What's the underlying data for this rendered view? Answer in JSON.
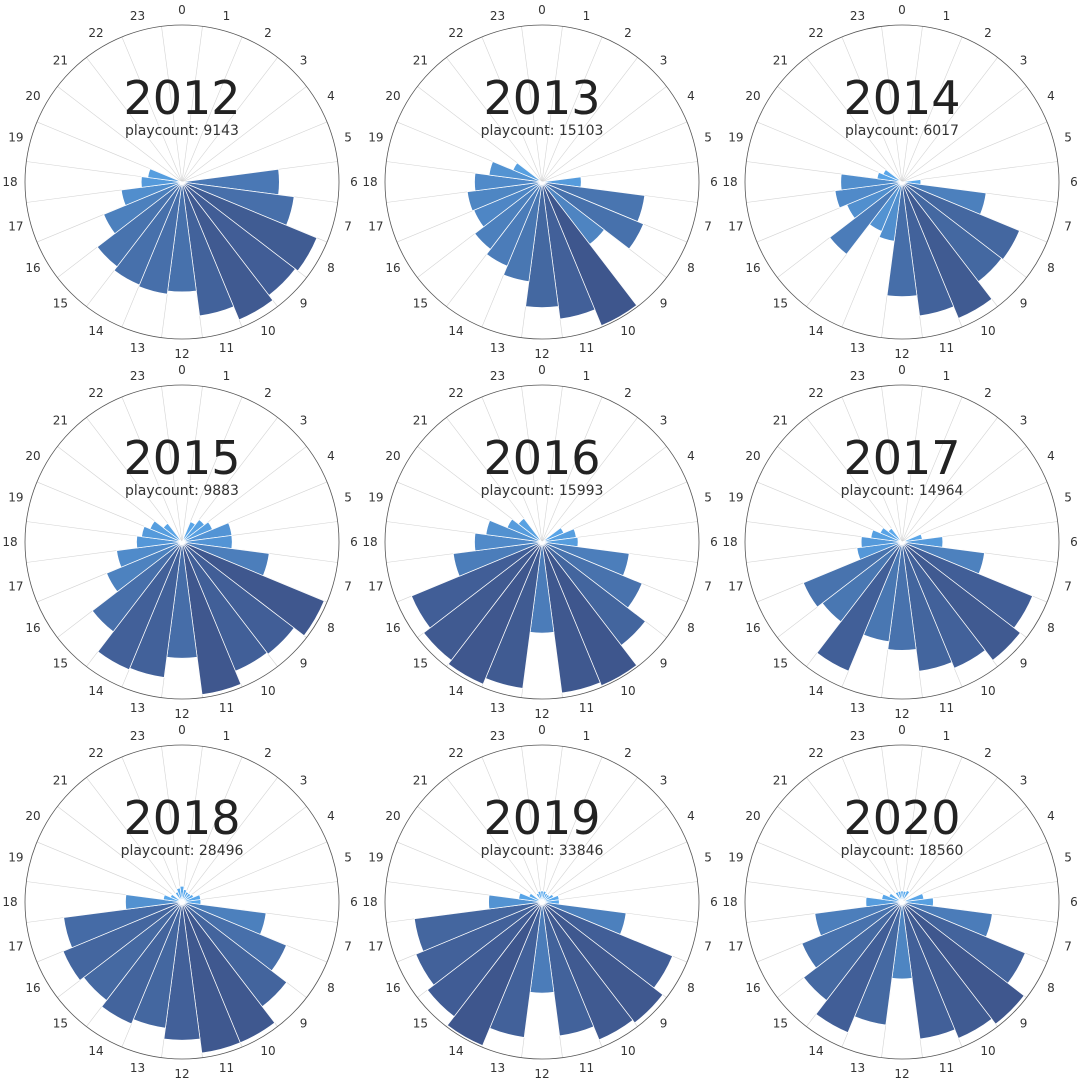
{
  "chart_data": [
    {
      "type": "bar",
      "subtype": "polar",
      "title": "2012",
      "subtitle_label": "playcount: ",
      "playcount": "9143",
      "categories": [
        "0",
        "1",
        "2",
        "3",
        "4",
        "5",
        "6",
        "7",
        "8",
        "9",
        "10",
        "11",
        "12",
        "13",
        "14",
        "15",
        "16",
        "17",
        "18",
        "19",
        "20",
        "21",
        "22",
        "23"
      ],
      "values": [
        0,
        0,
        0,
        0,
        0,
        0,
        0.62,
        0.72,
        0.93,
        0.91,
        0.95,
        0.86,
        0.7,
        0.72,
        0.71,
        0.68,
        0.54,
        0.39,
        0.26,
        0.22,
        0,
        0,
        0,
        0
      ]
    },
    {
      "type": "bar",
      "subtype": "polar",
      "title": "2013",
      "subtitle_label": "playcount: ",
      "playcount": "15103",
      "categories": [
        "0",
        "1",
        "2",
        "3",
        "4",
        "5",
        "6",
        "7",
        "8",
        "9",
        "10",
        "11",
        "12",
        "13",
        "14",
        "15",
        "16",
        "17",
        "18",
        "19",
        "20",
        "21",
        "22",
        "23"
      ],
      "values": [
        0,
        0,
        0,
        0,
        0,
        0,
        0.25,
        0.66,
        0.7,
        0.5,
        0.99,
        0.88,
        0.8,
        0.64,
        0.58,
        0.54,
        0.47,
        0.48,
        0.43,
        0.34,
        0.2,
        0,
        0,
        0
      ]
    },
    {
      "type": "bar",
      "subtype": "polar",
      "title": "2014",
      "subtitle_label": "playcount: ",
      "playcount": "6017",
      "categories": [
        "0",
        "1",
        "2",
        "3",
        "4",
        "5",
        "6",
        "7",
        "8",
        "9",
        "10",
        "11",
        "12",
        "13",
        "14",
        "15",
        "16",
        "17",
        "18",
        "19",
        "20",
        "21",
        "22",
        "23"
      ],
      "values": [
        0,
        0,
        0,
        0,
        0,
        0,
        0.12,
        0.54,
        0.81,
        0.8,
        0.94,
        0.86,
        0.73,
        0.38,
        0.34,
        0.58,
        0.38,
        0.43,
        0.39,
        0.16,
        0.13,
        0,
        0,
        0
      ]
    },
    {
      "type": "bar",
      "subtype": "polar",
      "title": "2015",
      "subtitle_label": "playcount: ",
      "playcount": "9883",
      "categories": [
        "0",
        "1",
        "2",
        "3",
        "4",
        "5",
        "6",
        "7",
        "8",
        "9",
        "10",
        "11",
        "12",
        "13",
        "14",
        "15",
        "16",
        "17",
        "18",
        "19",
        "20",
        "21",
        "22",
        "23"
      ],
      "values": [
        0,
        0,
        0.14,
        0.18,
        0.21,
        0.32,
        0.32,
        0.56,
        0.98,
        0.9,
        0.89,
        0.98,
        0.74,
        0.87,
        0.88,
        0.72,
        0.52,
        0.42,
        0.29,
        0.26,
        0.22,
        0.15,
        0,
        0
      ]
    },
    {
      "type": "bar",
      "subtype": "polar",
      "title": "2016",
      "subtitle_label": "playcount: ",
      "playcount": "15993",
      "categories": [
        "0",
        "1",
        "2",
        "3",
        "4",
        "5",
        "6",
        "7",
        "8",
        "9",
        "10",
        "11",
        "12",
        "13",
        "14",
        "15",
        "16",
        "17",
        "18",
        "19",
        "20",
        "21",
        "22",
        "23"
      ],
      "values": [
        0,
        0,
        0,
        0,
        0.15,
        0.22,
        0.23,
        0.56,
        0.69,
        0.83,
        0.99,
        0.97,
        0.58,
        0.94,
        0.98,
        0.95,
        0.9,
        0.57,
        0.43,
        0.36,
        0.24,
        0.19,
        0,
        0
      ]
    },
    {
      "type": "bar",
      "subtype": "polar",
      "title": "2017",
      "subtitle_label": "playcount: ",
      "playcount": "14964",
      "categories": [
        "0",
        "1",
        "2",
        "3",
        "4",
        "5",
        "6",
        "7",
        "8",
        "9",
        "10",
        "11",
        "12",
        "13",
        "14",
        "15",
        "16",
        "17",
        "18",
        "19",
        "20",
        "21",
        "22",
        "23"
      ],
      "values": [
        0,
        0,
        0,
        0,
        0,
        0.13,
        0.26,
        0.53,
        0.9,
        0.95,
        0.87,
        0.83,
        0.69,
        0.64,
        0.89,
        0.64,
        0.68,
        0.29,
        0.26,
        0.2,
        0.15,
        0.11,
        0,
        0
      ]
    },
    {
      "type": "bar",
      "subtype": "polar",
      "title": "2018",
      "subtitle_label": "playcount: ",
      "playcount": "28496",
      "categories": [
        "0",
        "1",
        "2",
        "3",
        "4",
        "5",
        "6",
        "7",
        "8",
        "9",
        "10",
        "11",
        "12",
        "13",
        "14",
        "15",
        "16",
        "17",
        "18",
        "19",
        "20",
        "21",
        "22",
        "23"
      ],
      "values": [
        0.1,
        0.08,
        0.07,
        0.07,
        0.08,
        0.12,
        0.12,
        0.54,
        0.72,
        0.84,
        0.97,
        0.97,
        0.88,
        0.81,
        0.84,
        0.79,
        0.82,
        0.76,
        0.36,
        0.12,
        0.08,
        0,
        0.07,
        0.09
      ]
    },
    {
      "type": "bar",
      "subtype": "polar",
      "title": "2019",
      "subtitle_label": "playcount: ",
      "playcount": "33846",
      "categories": [
        "0",
        "1",
        "2",
        "3",
        "4",
        "5",
        "6",
        "7",
        "8",
        "9",
        "10",
        "11",
        "12",
        "13",
        "14",
        "15",
        "16",
        "17",
        "18",
        "19",
        "20",
        "21",
        "22",
        "23"
      ],
      "values": [
        0.07,
        0.07,
        0.06,
        0.06,
        0.08,
        0.11,
        0.11,
        0.54,
        0.9,
        0.97,
        0.95,
        0.86,
        0.58,
        0.87,
        0.99,
        0.92,
        0.87,
        0.82,
        0.34,
        0.15,
        0.09,
        0,
        0.06,
        0.07
      ]
    },
    {
      "type": "bar",
      "subtype": "polar",
      "title": "2020",
      "subtitle_label": "playcount: ",
      "playcount": "18560",
      "categories": [
        "0",
        "1",
        "2",
        "3",
        "4",
        "5",
        "6",
        "7",
        "8",
        "9",
        "10",
        "11",
        "12",
        "13",
        "14",
        "15",
        "16",
        "17",
        "18",
        "19",
        "20",
        "21",
        "22",
        "23"
      ],
      "values": [
        0.07,
        0.07,
        0.08,
        0,
        0,
        0.14,
        0.2,
        0.58,
        0.85,
        0.98,
        0.94,
        0.88,
        0.49,
        0.79,
        0.9,
        0.79,
        0.69,
        0.56,
        0.23,
        0.13,
        0.09,
        0,
        0.07,
        0.07
      ]
    }
  ]
}
